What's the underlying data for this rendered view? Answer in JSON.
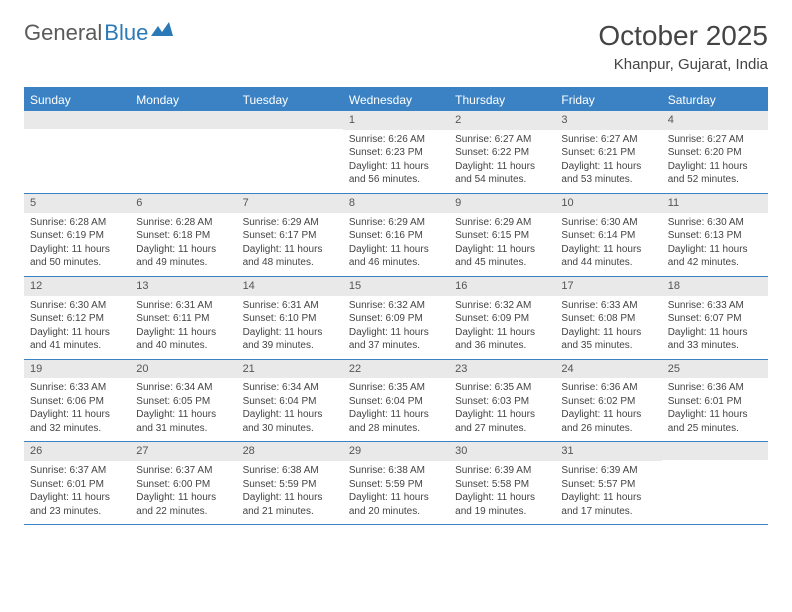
{
  "logo": {
    "text_gray": "General",
    "text_blue": "Blue"
  },
  "title": "October 2025",
  "location": "Khanpur, Gujarat, India",
  "colors": {
    "header_bg": "#3b82c4",
    "header_text": "#ffffff",
    "date_row_bg": "#e9e9e9",
    "border": "#3b82c4",
    "body_text": "#444444",
    "logo_gray": "#5a5a5a",
    "logo_blue": "#2a7ab8"
  },
  "day_names": [
    "Sunday",
    "Monday",
    "Tuesday",
    "Wednesday",
    "Thursday",
    "Friday",
    "Saturday"
  ],
  "weeks": [
    [
      {
        "date": "",
        "sunrise": "",
        "sunset": "",
        "daylight": ""
      },
      {
        "date": "",
        "sunrise": "",
        "sunset": "",
        "daylight": ""
      },
      {
        "date": "",
        "sunrise": "",
        "sunset": "",
        "daylight": ""
      },
      {
        "date": "1",
        "sunrise": "Sunrise: 6:26 AM",
        "sunset": "Sunset: 6:23 PM",
        "daylight": "Daylight: 11 hours and 56 minutes."
      },
      {
        "date": "2",
        "sunrise": "Sunrise: 6:27 AM",
        "sunset": "Sunset: 6:22 PM",
        "daylight": "Daylight: 11 hours and 54 minutes."
      },
      {
        "date": "3",
        "sunrise": "Sunrise: 6:27 AM",
        "sunset": "Sunset: 6:21 PM",
        "daylight": "Daylight: 11 hours and 53 minutes."
      },
      {
        "date": "4",
        "sunrise": "Sunrise: 6:27 AM",
        "sunset": "Sunset: 6:20 PM",
        "daylight": "Daylight: 11 hours and 52 minutes."
      }
    ],
    [
      {
        "date": "5",
        "sunrise": "Sunrise: 6:28 AM",
        "sunset": "Sunset: 6:19 PM",
        "daylight": "Daylight: 11 hours and 50 minutes."
      },
      {
        "date": "6",
        "sunrise": "Sunrise: 6:28 AM",
        "sunset": "Sunset: 6:18 PM",
        "daylight": "Daylight: 11 hours and 49 minutes."
      },
      {
        "date": "7",
        "sunrise": "Sunrise: 6:29 AM",
        "sunset": "Sunset: 6:17 PM",
        "daylight": "Daylight: 11 hours and 48 minutes."
      },
      {
        "date": "8",
        "sunrise": "Sunrise: 6:29 AM",
        "sunset": "Sunset: 6:16 PM",
        "daylight": "Daylight: 11 hours and 46 minutes."
      },
      {
        "date": "9",
        "sunrise": "Sunrise: 6:29 AM",
        "sunset": "Sunset: 6:15 PM",
        "daylight": "Daylight: 11 hours and 45 minutes."
      },
      {
        "date": "10",
        "sunrise": "Sunrise: 6:30 AM",
        "sunset": "Sunset: 6:14 PM",
        "daylight": "Daylight: 11 hours and 44 minutes."
      },
      {
        "date": "11",
        "sunrise": "Sunrise: 6:30 AM",
        "sunset": "Sunset: 6:13 PM",
        "daylight": "Daylight: 11 hours and 42 minutes."
      }
    ],
    [
      {
        "date": "12",
        "sunrise": "Sunrise: 6:30 AM",
        "sunset": "Sunset: 6:12 PM",
        "daylight": "Daylight: 11 hours and 41 minutes."
      },
      {
        "date": "13",
        "sunrise": "Sunrise: 6:31 AM",
        "sunset": "Sunset: 6:11 PM",
        "daylight": "Daylight: 11 hours and 40 minutes."
      },
      {
        "date": "14",
        "sunrise": "Sunrise: 6:31 AM",
        "sunset": "Sunset: 6:10 PM",
        "daylight": "Daylight: 11 hours and 39 minutes."
      },
      {
        "date": "15",
        "sunrise": "Sunrise: 6:32 AM",
        "sunset": "Sunset: 6:09 PM",
        "daylight": "Daylight: 11 hours and 37 minutes."
      },
      {
        "date": "16",
        "sunrise": "Sunrise: 6:32 AM",
        "sunset": "Sunset: 6:09 PM",
        "daylight": "Daylight: 11 hours and 36 minutes."
      },
      {
        "date": "17",
        "sunrise": "Sunrise: 6:33 AM",
        "sunset": "Sunset: 6:08 PM",
        "daylight": "Daylight: 11 hours and 35 minutes."
      },
      {
        "date": "18",
        "sunrise": "Sunrise: 6:33 AM",
        "sunset": "Sunset: 6:07 PM",
        "daylight": "Daylight: 11 hours and 33 minutes."
      }
    ],
    [
      {
        "date": "19",
        "sunrise": "Sunrise: 6:33 AM",
        "sunset": "Sunset: 6:06 PM",
        "daylight": "Daylight: 11 hours and 32 minutes."
      },
      {
        "date": "20",
        "sunrise": "Sunrise: 6:34 AM",
        "sunset": "Sunset: 6:05 PM",
        "daylight": "Daylight: 11 hours and 31 minutes."
      },
      {
        "date": "21",
        "sunrise": "Sunrise: 6:34 AM",
        "sunset": "Sunset: 6:04 PM",
        "daylight": "Daylight: 11 hours and 30 minutes."
      },
      {
        "date": "22",
        "sunrise": "Sunrise: 6:35 AM",
        "sunset": "Sunset: 6:04 PM",
        "daylight": "Daylight: 11 hours and 28 minutes."
      },
      {
        "date": "23",
        "sunrise": "Sunrise: 6:35 AM",
        "sunset": "Sunset: 6:03 PM",
        "daylight": "Daylight: 11 hours and 27 minutes."
      },
      {
        "date": "24",
        "sunrise": "Sunrise: 6:36 AM",
        "sunset": "Sunset: 6:02 PM",
        "daylight": "Daylight: 11 hours and 26 minutes."
      },
      {
        "date": "25",
        "sunrise": "Sunrise: 6:36 AM",
        "sunset": "Sunset: 6:01 PM",
        "daylight": "Daylight: 11 hours and 25 minutes."
      }
    ],
    [
      {
        "date": "26",
        "sunrise": "Sunrise: 6:37 AM",
        "sunset": "Sunset: 6:01 PM",
        "daylight": "Daylight: 11 hours and 23 minutes."
      },
      {
        "date": "27",
        "sunrise": "Sunrise: 6:37 AM",
        "sunset": "Sunset: 6:00 PM",
        "daylight": "Daylight: 11 hours and 22 minutes."
      },
      {
        "date": "28",
        "sunrise": "Sunrise: 6:38 AM",
        "sunset": "Sunset: 5:59 PM",
        "daylight": "Daylight: 11 hours and 21 minutes."
      },
      {
        "date": "29",
        "sunrise": "Sunrise: 6:38 AM",
        "sunset": "Sunset: 5:59 PM",
        "daylight": "Daylight: 11 hours and 20 minutes."
      },
      {
        "date": "30",
        "sunrise": "Sunrise: 6:39 AM",
        "sunset": "Sunset: 5:58 PM",
        "daylight": "Daylight: 11 hours and 19 minutes."
      },
      {
        "date": "31",
        "sunrise": "Sunrise: 6:39 AM",
        "sunset": "Sunset: 5:57 PM",
        "daylight": "Daylight: 11 hours and 17 minutes."
      },
      {
        "date": "",
        "sunrise": "",
        "sunset": "",
        "daylight": ""
      }
    ]
  ]
}
